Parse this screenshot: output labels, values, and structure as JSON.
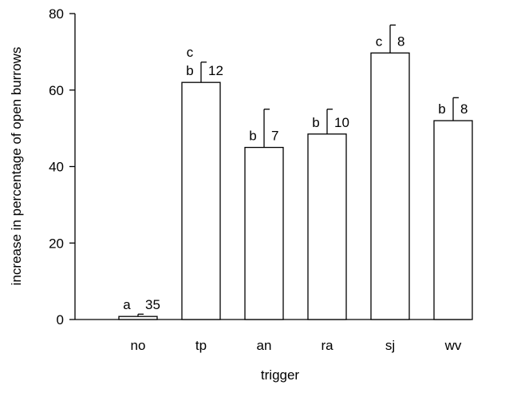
{
  "chart_data": {
    "type": "bar",
    "title": "",
    "xlabel": "trigger",
    "ylabel": "increase in percentage of open burrows",
    "ylim": [
      0,
      80
    ],
    "yticks": [
      0,
      20,
      40,
      60,
      80
    ],
    "grid": false,
    "categories": [
      "no",
      "tp",
      "an",
      "ra",
      "sj",
      "wv"
    ],
    "values": [
      0.8,
      62,
      45,
      48.5,
      69.7,
      52
    ],
    "errors": [
      0.6,
      5.3,
      10,
      6.5,
      7.3,
      6
    ],
    "letters": [
      [
        "a"
      ],
      [
        "b",
        "c"
      ],
      [
        "b"
      ],
      [
        "b"
      ],
      [
        "c"
      ],
      [
        "b"
      ]
    ],
    "n": [
      "35",
      "12",
      "7",
      "10",
      "8",
      "8"
    ]
  }
}
